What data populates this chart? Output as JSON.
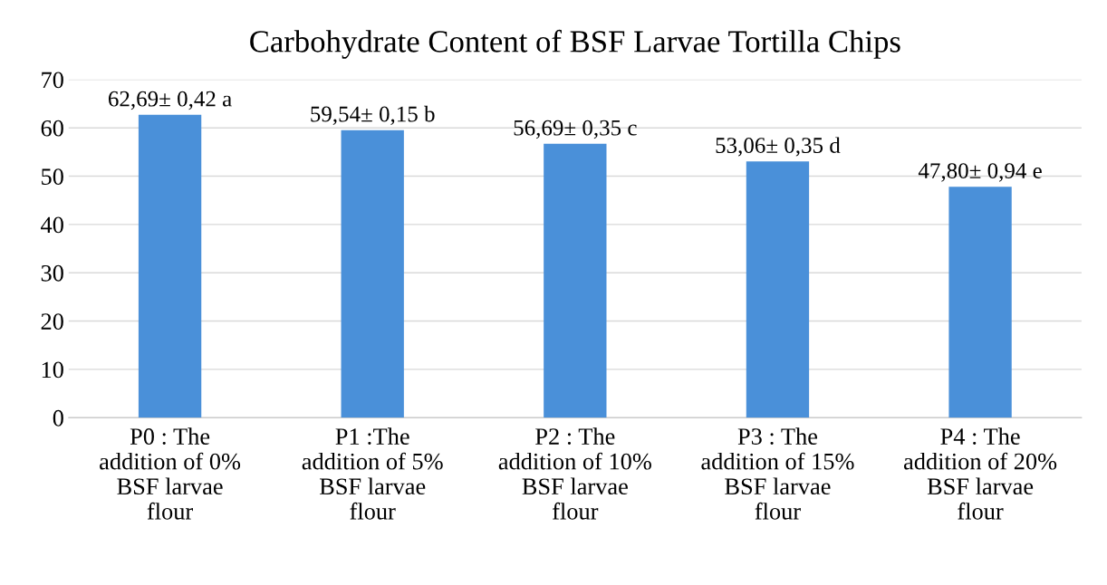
{
  "chart_data": {
    "type": "bar",
    "title": "Carbohydrate Content of BSF Larvae Tortilla Chips",
    "categories": [
      "P0 : The\naddition of 0%\nBSF larvae\nflour",
      "P1 :The\naddition of 5%\nBSF larvae\nflour",
      "P2 : The\naddition of 10%\nBSF larvae\nflour",
      "P3 : The\naddition of 15%\nBSF larvae\nflour",
      "P4 : The\naddition of 20%\nBSF larvae\nflour"
    ],
    "values": [
      62.69,
      59.54,
      56.69,
      53.06,
      47.8
    ],
    "value_labels": [
      "62,69± 0,42 a",
      "59,54± 0,15 b",
      "56,69± 0,35 c",
      "53,06± 0,35 d",
      "47,80± 0,94 e"
    ],
    "color": "#4a90d9",
    "ylim": [
      0,
      70
    ],
    "yticks": [
      0,
      10,
      20,
      30,
      40,
      50,
      60,
      70
    ],
    "grid": "y",
    "legend": false
  }
}
